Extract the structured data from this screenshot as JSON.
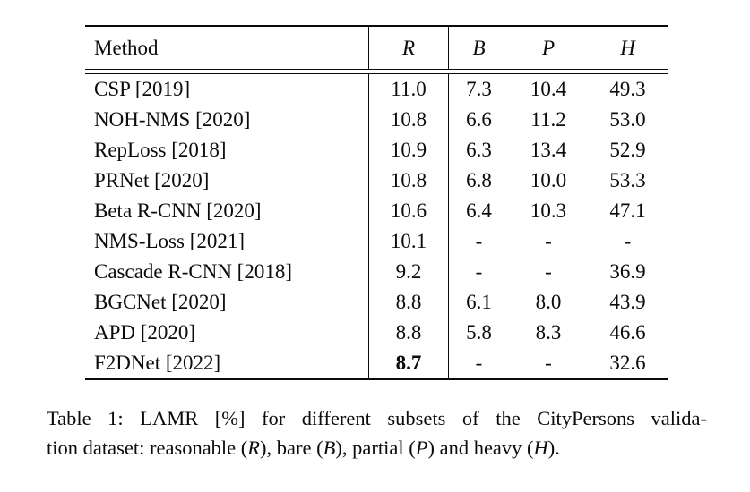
{
  "table": {
    "columns": [
      "Method",
      "R",
      "B",
      "P",
      "H"
    ],
    "rows": [
      {
        "method": "CSP [2019]",
        "r": "11.0",
        "b": "7.3",
        "p": "10.4",
        "h": "49.3"
      },
      {
        "method": "NOH-NMS [2020]",
        "r": "10.8",
        "b": "6.6",
        "p": "11.2",
        "h": "53.0"
      },
      {
        "method": "RepLoss [2018]",
        "r": "10.9",
        "b": "6.3",
        "p": "13.4",
        "h": "52.9"
      },
      {
        "method": "PRNet [2020]",
        "r": "10.8",
        "b": "6.8",
        "p": "10.0",
        "h": "53.3"
      },
      {
        "method": "Beta R-CNN [2020]",
        "r": "10.6",
        "b": "6.4",
        "p": "10.3",
        "h": "47.1"
      },
      {
        "method": "NMS-Loss [2021]",
        "r": "10.1",
        "b": "-",
        "p": "-",
        "h": "-"
      },
      {
        "method": "Cascade R-CNN [2018]",
        "r": "9.2",
        "b": "-",
        "p": "-",
        "h": "36.9"
      },
      {
        "method": "BGCNet [2020]",
        "r": "8.8",
        "b": "6.1",
        "p": "8.0",
        "h": "43.9"
      },
      {
        "method": "APD [2020]",
        "r": "8.8",
        "b": "5.8",
        "p": "8.3",
        "h": "46.6"
      },
      {
        "method": "F2DNet [2022]",
        "r": "8.7",
        "r_bold": true,
        "b": "-",
        "p": "-",
        "h": "32.6"
      }
    ]
  },
  "caption": {
    "line1": "Table 1: LAMR [%] for different subsets of the CityPersons valida-",
    "line2_parts": [
      "tion dataset: reasonable (",
      "R",
      "), bare (",
      "B",
      "), partial (",
      "P",
      ") and heavy (",
      "H",
      ")."
    ]
  }
}
